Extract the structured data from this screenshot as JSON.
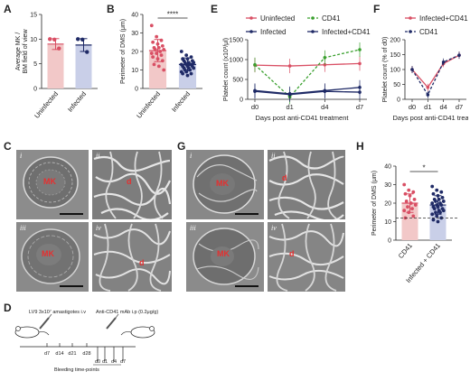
{
  "panels": {
    "A": {
      "label": "A"
    },
    "B": {
      "label": "B"
    },
    "C": {
      "label": "C"
    },
    "D": {
      "label": "D"
    },
    "E": {
      "label": "E"
    },
    "F": {
      "label": "F"
    },
    "G": {
      "label": "G"
    },
    "H": {
      "label": "H"
    }
  },
  "em_labels": {
    "C": {
      "i": "i",
      "ii": "ii",
      "iii": "iii",
      "iv": "iv",
      "mk_i": "MK",
      "mk_ii": "d",
      "mk_iii": "MK",
      "mk_iv": "d"
    },
    "G": {
      "i": "i",
      "ii": "ii",
      "iii": "iii",
      "iv": "iv",
      "mk_i": "MK",
      "mk_ii": "d",
      "mk_iii": "MK",
      "mk_iv": "d"
    }
  },
  "timeline": {
    "infection": "LV9 3x10⁷ amastigotes i.v",
    "treatment": "Anti-CD41 mAb i.p (0.2μg/g)",
    "ticks_infection": [
      "d7",
      "d14",
      "d21",
      "d28"
    ],
    "ticks_post": [
      "d0",
      "d1",
      "d4",
      "d7"
    ],
    "bleeding": "Bleeding time-points"
  },
  "colors": {
    "uninfected": "#d94f64",
    "infected": "#1f2a66",
    "cd41": "#3aa02e",
    "uninf_fill": "#f2c8c8",
    "inf_fill": "#c9cfe8"
  },
  "chart_data": [
    {
      "id": "A",
      "type": "bar",
      "categories": [
        "Uninfected",
        "Infected"
      ],
      "values": [
        9.0,
        8.8
      ],
      "errors": [
        1.1,
        1.3
      ],
      "points": [
        [
          10,
          9.9,
          8.1
        ],
        [
          10,
          9.9,
          7.4
        ]
      ],
      "ylabel": "Average MK / BM field of view",
      "ylim": [
        0,
        15
      ],
      "yticks": [
        0,
        5,
        10,
        15
      ]
    },
    {
      "id": "B",
      "type": "bar",
      "categories": [
        "Uninfected",
        "Infected"
      ],
      "values": [
        20.5,
        13.0
      ],
      "errors": [
        6.0,
        3.5
      ],
      "ylabel": "Perimeter of DMS (μm)",
      "ylim": [
        0,
        40
      ],
      "yticks": [
        0,
        10,
        20,
        30,
        40
      ],
      "significance": "****",
      "points": [
        [
          34,
          28,
          26,
          25,
          24,
          23,
          22,
          22,
          21,
          21,
          20,
          19,
          19,
          18,
          17,
          16,
          15,
          13,
          12,
          10
        ],
        [
          20,
          18,
          17,
          16,
          16,
          15,
          15,
          14,
          14,
          14,
          13,
          13,
          13,
          13,
          12,
          12,
          12,
          11,
          11,
          11,
          10,
          10,
          9,
          9,
          8,
          8,
          7
        ]
      ]
    },
    {
      "id": "E",
      "type": "line",
      "x": [
        "d0",
        "d1",
        "d4",
        "d7"
      ],
      "series": [
        {
          "name": "Uninfected",
          "values": [
            860,
            840,
            870,
            900
          ],
          "style": "solid"
        },
        {
          "name": "CD41",
          "values": [
            870,
            60,
            1050,
            1250
          ],
          "style": "dashed"
        },
        {
          "name": "Infected",
          "values": [
            220,
            140,
            220,
            300
          ],
          "style": "solid"
        },
        {
          "name": "Infected+CD41",
          "values": [
            200,
            120,
            200,
            180
          ],
          "style": "solid"
        }
      ],
      "ylabel": "Platelet count (x10³/μl)",
      "xlabel": "Days post anti-CD41 treatment",
      "ylim": [
        0,
        1500
      ],
      "yticks": [
        0,
        500,
        1000,
        1500
      ]
    },
    {
      "id": "F",
      "type": "line",
      "x": [
        "d0",
        "d1",
        "d4",
        "d7"
      ],
      "series": [
        {
          "name": "Infected+CD41",
          "values": [
            100,
            40,
            120,
            148
          ],
          "style": "solid"
        },
        {
          "name": "CD41",
          "values": [
            100,
            15,
            125,
            148
          ],
          "style": "dashed"
        }
      ],
      "ylabel": "Platelet count (% of d0)",
      "xlabel": "Days post anti-CD41 treatment",
      "ylim": [
        0,
        200
      ],
      "yticks": [
        0,
        50,
        100,
        150,
        200
      ]
    },
    {
      "id": "H",
      "type": "bar",
      "categories": [
        "CD41",
        "Infected + CD41"
      ],
      "values": [
        20.0,
        19.0
      ],
      "errors": [
        5.0,
        5.0
      ],
      "ylabel": "Perimeter of DMS (μm)",
      "ylim": [
        0,
        40
      ],
      "yticks": [
        0,
        10,
        20,
        30,
        40
      ],
      "significance": "*",
      "reference_line": 12,
      "points": [
        [
          30,
          27,
          26,
          25,
          24,
          22,
          21,
          20,
          19,
          18,
          17,
          16,
          15,
          13,
          12
        ],
        [
          29,
          27,
          26,
          25,
          24,
          23,
          22,
          22,
          21,
          21,
          20,
          20,
          19,
          19,
          18,
          18,
          17,
          17,
          16,
          16,
          15,
          15,
          14,
          13,
          12,
          11,
          10
        ]
      ]
    }
  ]
}
